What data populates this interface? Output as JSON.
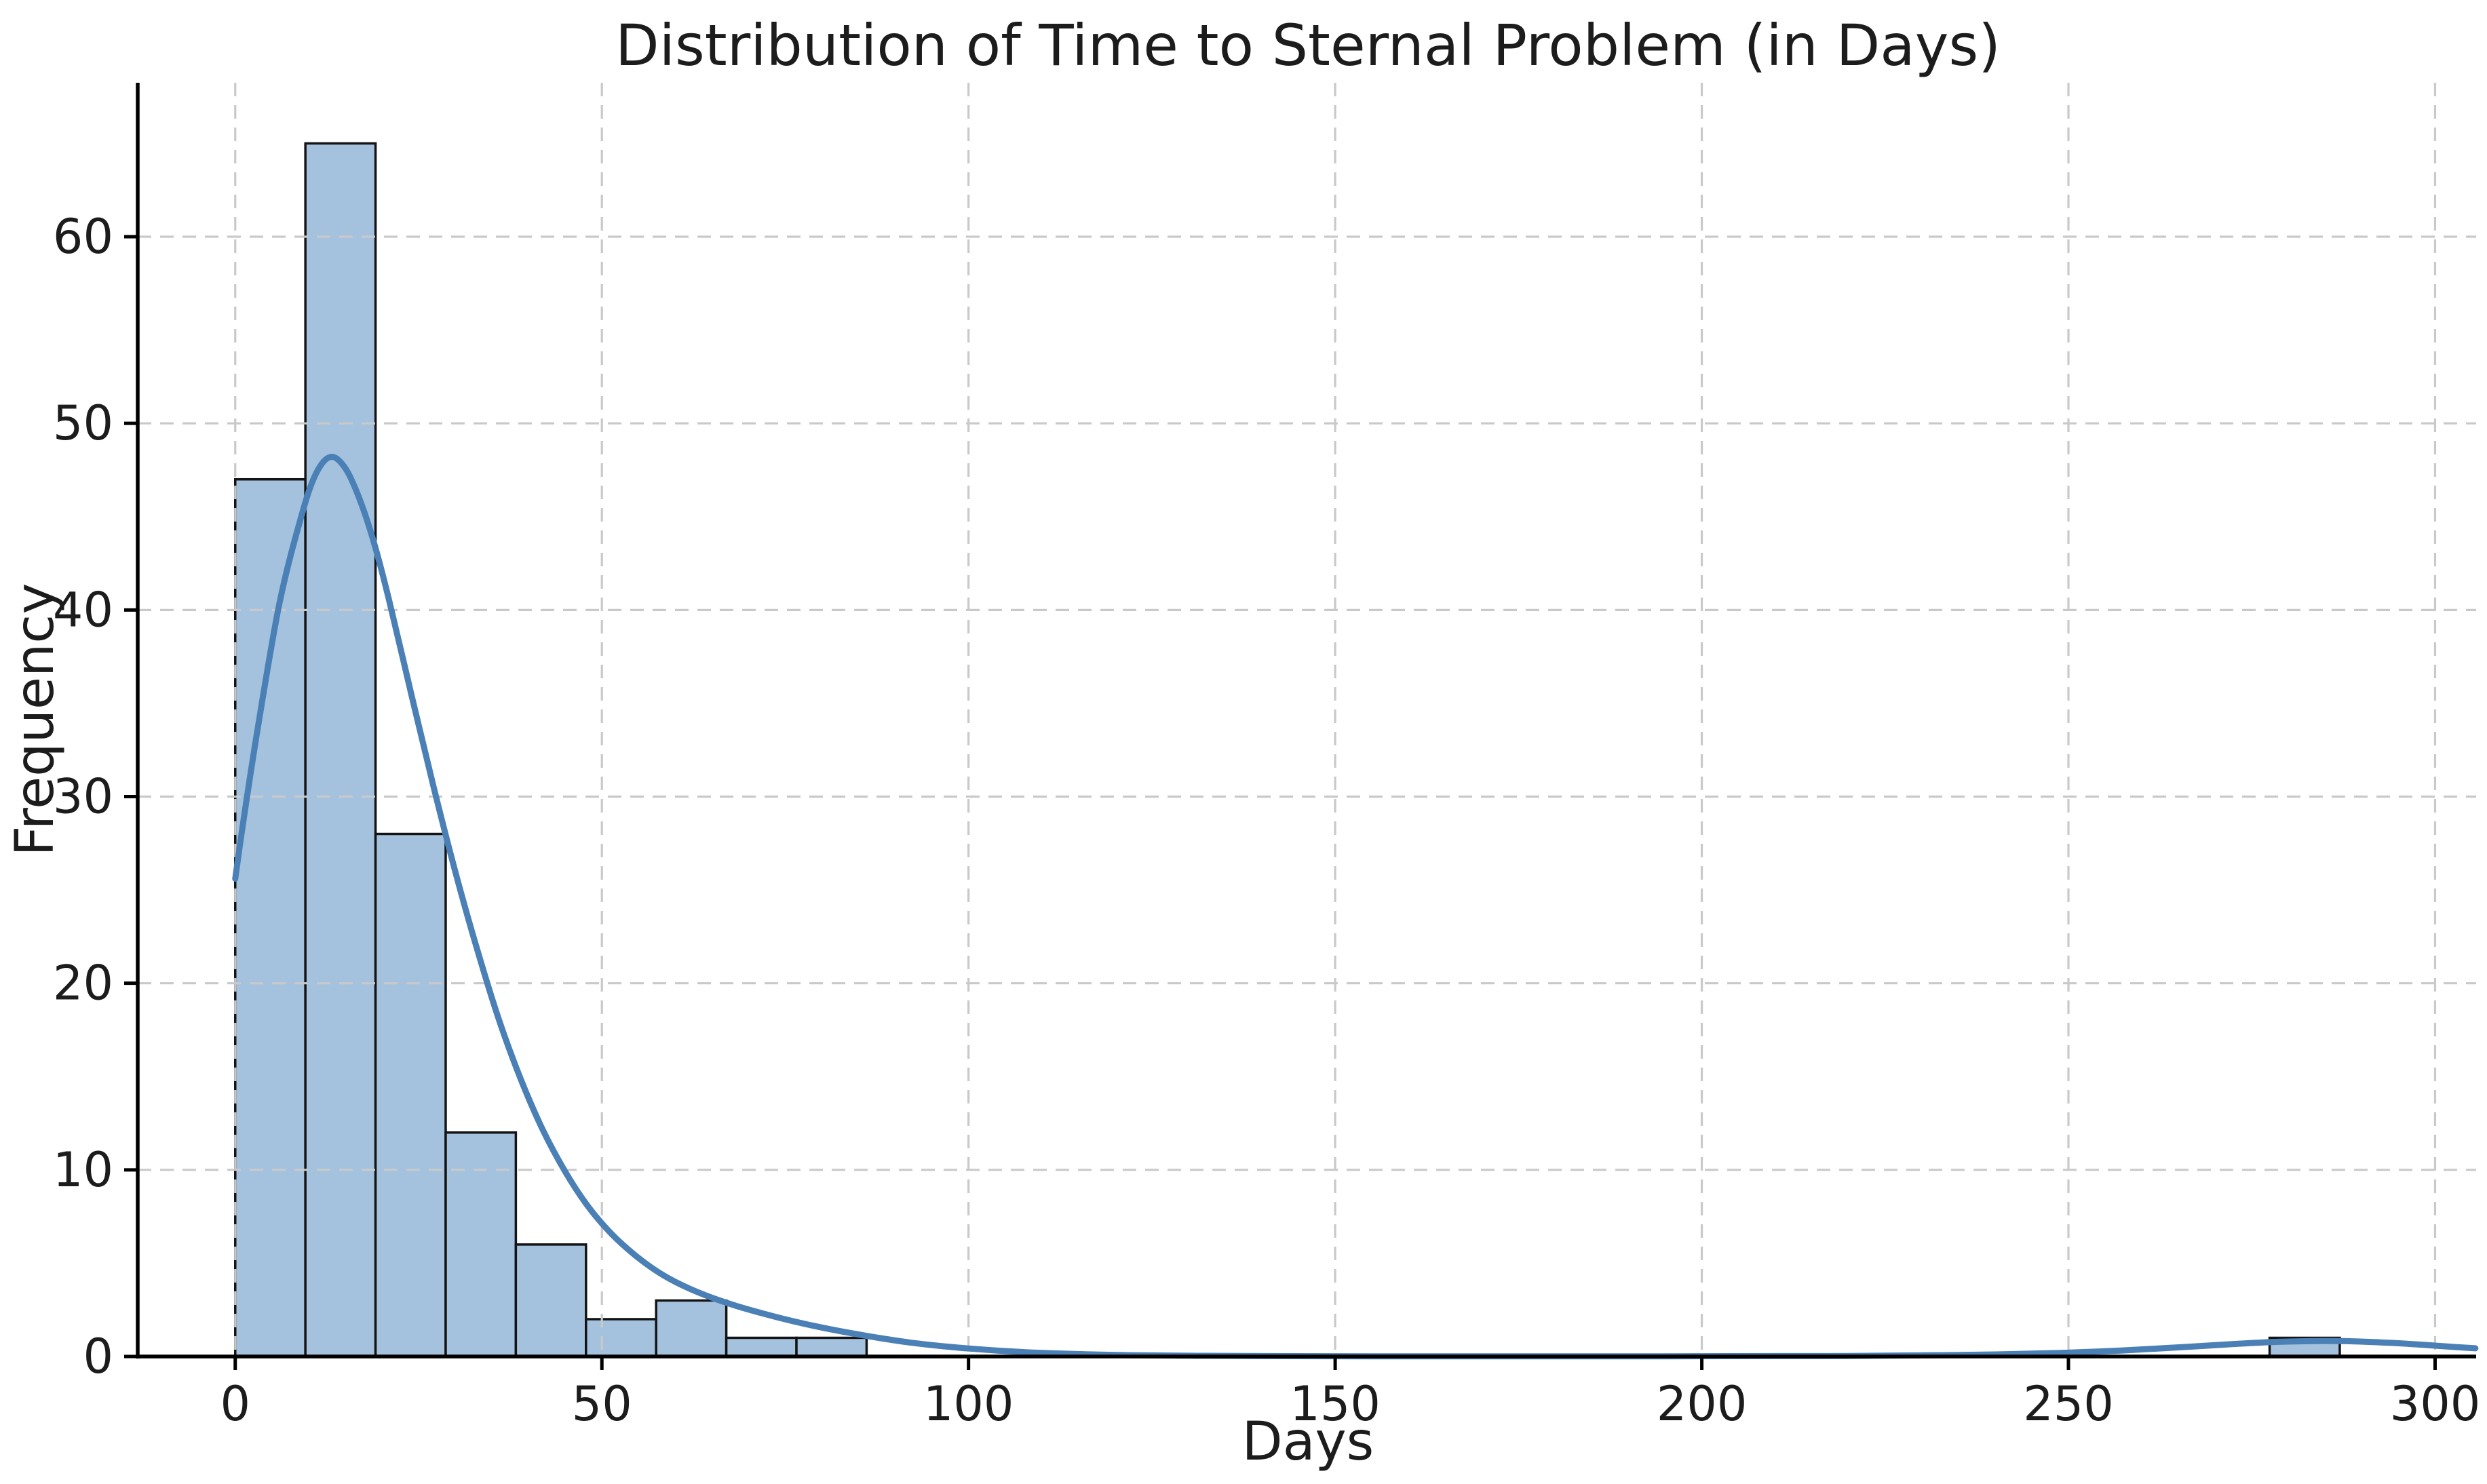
{
  "figure": {
    "kind": "histogram with kde overlay",
    "background": "#ffffff"
  },
  "chart_data": {
    "type": "bar",
    "subtype": "histogram+kde",
    "title": "Distribution of Time to Sternal Problem (in Days)",
    "xlabel": "Days",
    "ylabel": "Frequency",
    "x_ticks": [
      0,
      50,
      100,
      150,
      200,
      250,
      300
    ],
    "y_ticks": [
      0,
      10,
      20,
      30,
      40,
      50,
      60
    ],
    "xlim": [
      -13.3,
      305.6
    ],
    "ylim": [
      0,
      68.25
    ],
    "grid": {
      "style": "dashed",
      "color": "#c9c9c9",
      "above_bars": true
    },
    "legend": "none",
    "spines": {
      "left": true,
      "bottom": true,
      "top": false,
      "right": false
    },
    "bins": {
      "start": 0,
      "width": 9.5667,
      "counts": [
        47,
        65,
        28,
        12,
        6,
        2,
        3,
        1,
        1,
        0,
        0,
        0,
        0,
        0,
        0,
        0,
        0,
        0,
        0,
        0,
        0,
        0,
        0,
        0,
        0,
        0,
        0,
        0,
        0,
        1
      ]
    },
    "kde": {
      "name": "kde-density-scaled-to-counts",
      "peak": {
        "x": 13,
        "y": 48.2
      },
      "tail_bump_peak": {
        "x": 284,
        "y": 0.83
      },
      "points": [
        [
          0,
          25.6
        ],
        [
          1,
          28.4
        ],
        [
          3,
          33.5
        ],
        [
          6,
          40.3
        ],
        [
          9,
          45.0
        ],
        [
          11,
          47.3
        ],
        [
          13,
          48.2
        ],
        [
          15,
          47.6
        ],
        [
          17,
          45.9
        ],
        [
          19,
          43.5
        ],
        [
          21,
          40.5
        ],
        [
          24,
          35.5
        ],
        [
          27,
          30.6
        ],
        [
          30,
          26.0
        ],
        [
          33,
          21.8
        ],
        [
          36,
          18.0
        ],
        [
          39,
          14.8
        ],
        [
          42,
          12.1
        ],
        [
          45,
          9.9
        ],
        [
          48,
          8.1
        ],
        [
          51,
          6.7
        ],
        [
          54,
          5.6
        ],
        [
          57,
          4.7
        ],
        [
          60,
          4.0
        ],
        [
          64,
          3.3
        ],
        [
          68,
          2.75
        ],
        [
          72,
          2.3
        ],
        [
          76,
          1.9
        ],
        [
          80,
          1.55
        ],
        [
          84,
          1.25
        ],
        [
          88,
          0.98
        ],
        [
          92,
          0.75
        ],
        [
          96,
          0.57
        ],
        [
          100,
          0.43
        ],
        [
          105,
          0.29
        ],
        [
          110,
          0.19
        ],
        [
          116,
          0.12
        ],
        [
          122,
          0.07
        ],
        [
          130,
          0.04
        ],
        [
          140,
          0.02
        ],
        [
          155,
          0.01
        ],
        [
          175,
          0.01
        ],
        [
          195,
          0.01
        ],
        [
          210,
          0.02
        ],
        [
          220,
          0.03
        ],
        [
          230,
          0.06
        ],
        [
          240,
          0.11
        ],
        [
          248,
          0.18
        ],
        [
          255,
          0.28
        ],
        [
          262,
          0.42
        ],
        [
          268,
          0.56
        ],
        [
          274,
          0.7
        ],
        [
          279,
          0.79
        ],
        [
          284,
          0.83
        ],
        [
          289,
          0.81
        ],
        [
          294,
          0.73
        ],
        [
          299,
          0.61
        ],
        [
          303,
          0.5
        ],
        [
          305.5,
          0.44
        ]
      ]
    },
    "colors": {
      "bar_fill": "#a4c2de",
      "bar_edge": "#141414",
      "kde_line": "#4a80b5",
      "grid": "#c9c9c9",
      "axis": "#000000",
      "text": "#1c1c1c"
    }
  }
}
